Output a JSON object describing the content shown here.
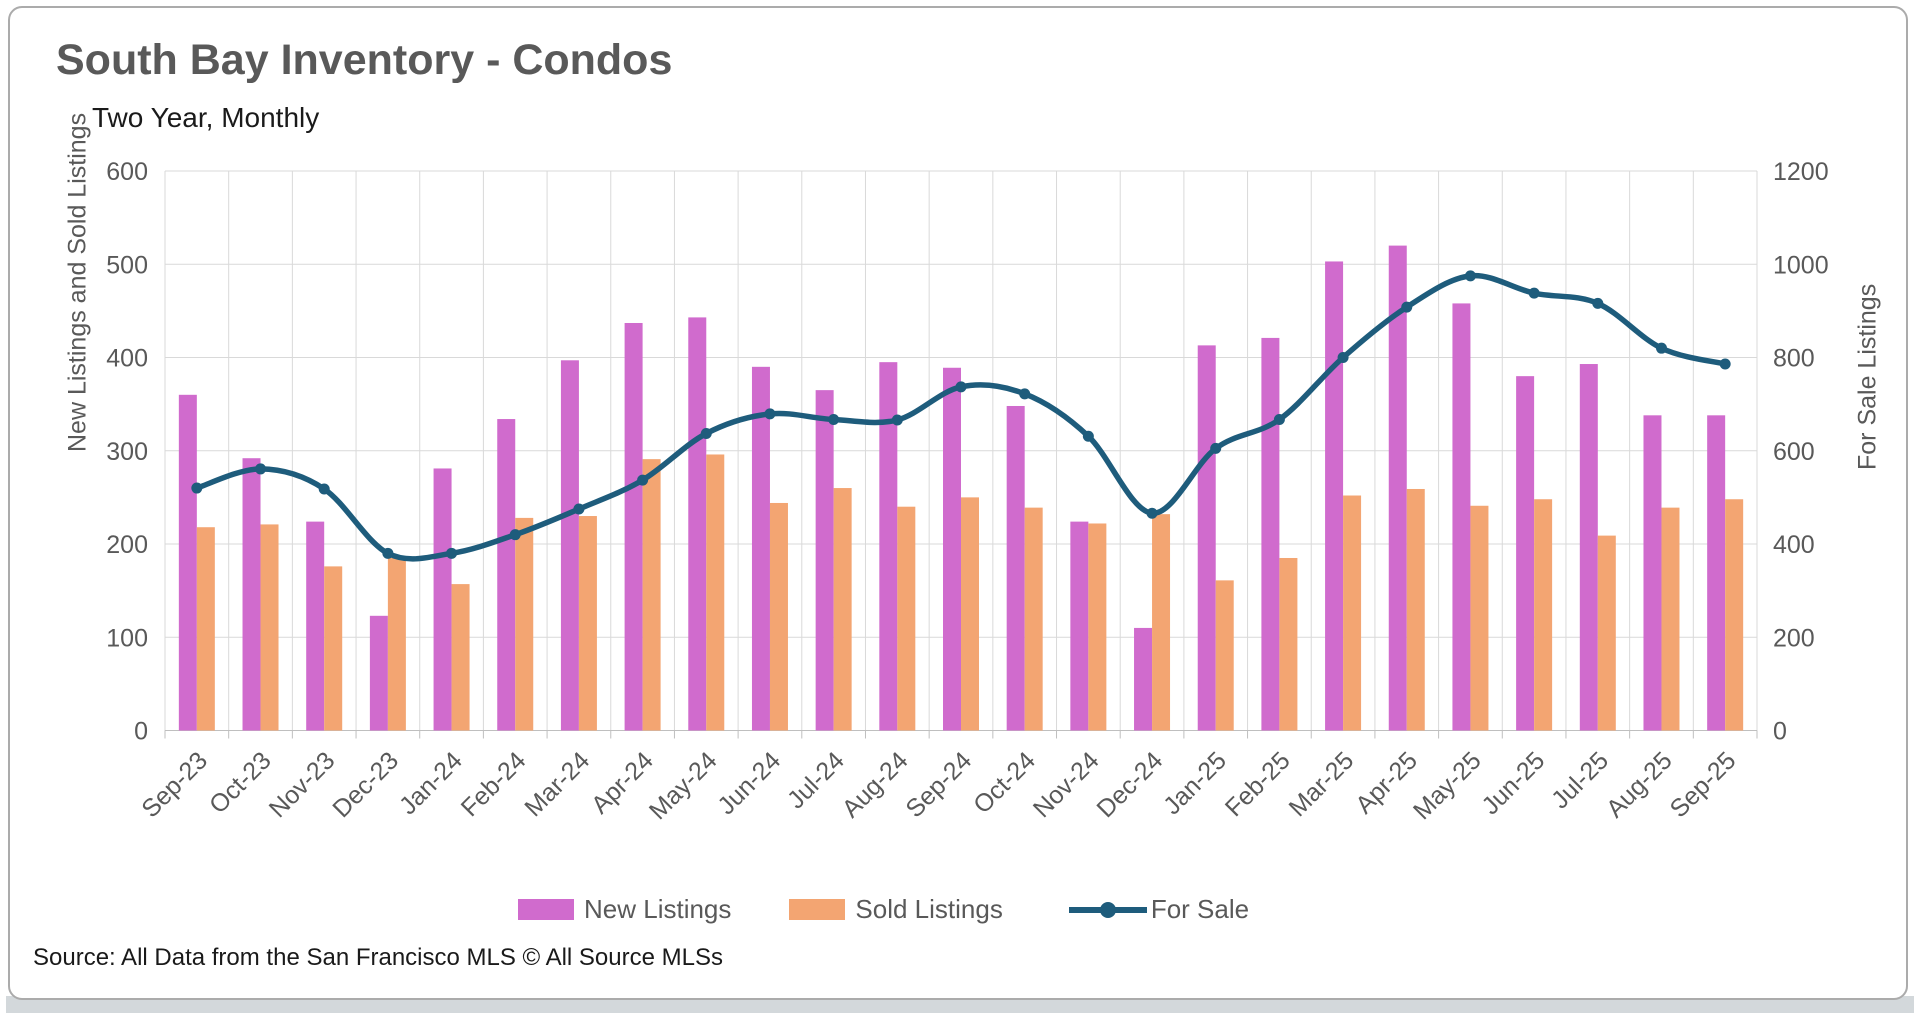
{
  "page": {
    "title": "South Bay Inventory - Condos",
    "subtitle": "Two Year, Monthly",
    "source": "Source: All Data from the San Francisco MLS © All Source MLSs"
  },
  "chart_data": {
    "type": "bar",
    "subtype": "clustered-bars-with-smoothed-line-combo",
    "categories": [
      "Sep-23",
      "Oct-23",
      "Nov-23",
      "Dec-23",
      "Jan-24",
      "Feb-24",
      "Mar-24",
      "Apr-24",
      "May-24",
      "Jun-24",
      "Jul-24",
      "Aug-24",
      "Sep-24",
      "Oct-24",
      "Nov-24",
      "Dec-24",
      "Jan-25",
      "Feb-25",
      "Mar-25",
      "Apr-25",
      "May-25",
      "Jun-25",
      "Jul-25",
      "Aug-25",
      "Sep-25"
    ],
    "series": [
      {
        "name": "New Listings",
        "type": "bar",
        "axis": "left",
        "color": "#d06bcd",
        "values": [
          360,
          292,
          224,
          123,
          281,
          334,
          397,
          437,
          443,
          390,
          365,
          395,
          389,
          348,
          224,
          110,
          413,
          421,
          503,
          520,
          458,
          380,
          393,
          338,
          338
        ]
      },
      {
        "name": "Sold Listings",
        "type": "bar",
        "axis": "left",
        "color": "#f3a572",
        "values": [
          218,
          221,
          176,
          185,
          157,
          228,
          230,
          291,
          296,
          244,
          260,
          240,
          250,
          239,
          222,
          232,
          161,
          185,
          252,
          259,
          241,
          248,
          209,
          239,
          248
        ]
      },
      {
        "name": "For Sale",
        "type": "line",
        "axis": "right",
        "color": "#1e5c7c",
        "marker": "circle",
        "values": [
          520,
          561,
          518,
          380,
          380,
          420,
          475,
          537,
          637,
          679,
          667,
          666,
          737,
          722,
          631,
          466,
          605,
          667,
          800,
          908,
          975,
          938,
          916,
          820,
          786
        ]
      }
    ],
    "left_axis": {
      "title": "New Listings and Sold Listings",
      "min": 0,
      "max": 600,
      "step": 100,
      "tick_labels": [
        "600",
        "500",
        "400",
        "300",
        "200",
        "100",
        "0"
      ]
    },
    "right_axis": {
      "title": "For Sale Listings",
      "min": 0,
      "max": 1200,
      "step": 200,
      "tick_labels": [
        "1200",
        "1000",
        "800",
        "600",
        "400",
        "200",
        "0"
      ]
    },
    "legend_position": "bottom",
    "grid": {
      "horizontal": true,
      "vertical": true,
      "color": "#d9d9d9",
      "axis_line_color": "#bfbfbf"
    }
  }
}
